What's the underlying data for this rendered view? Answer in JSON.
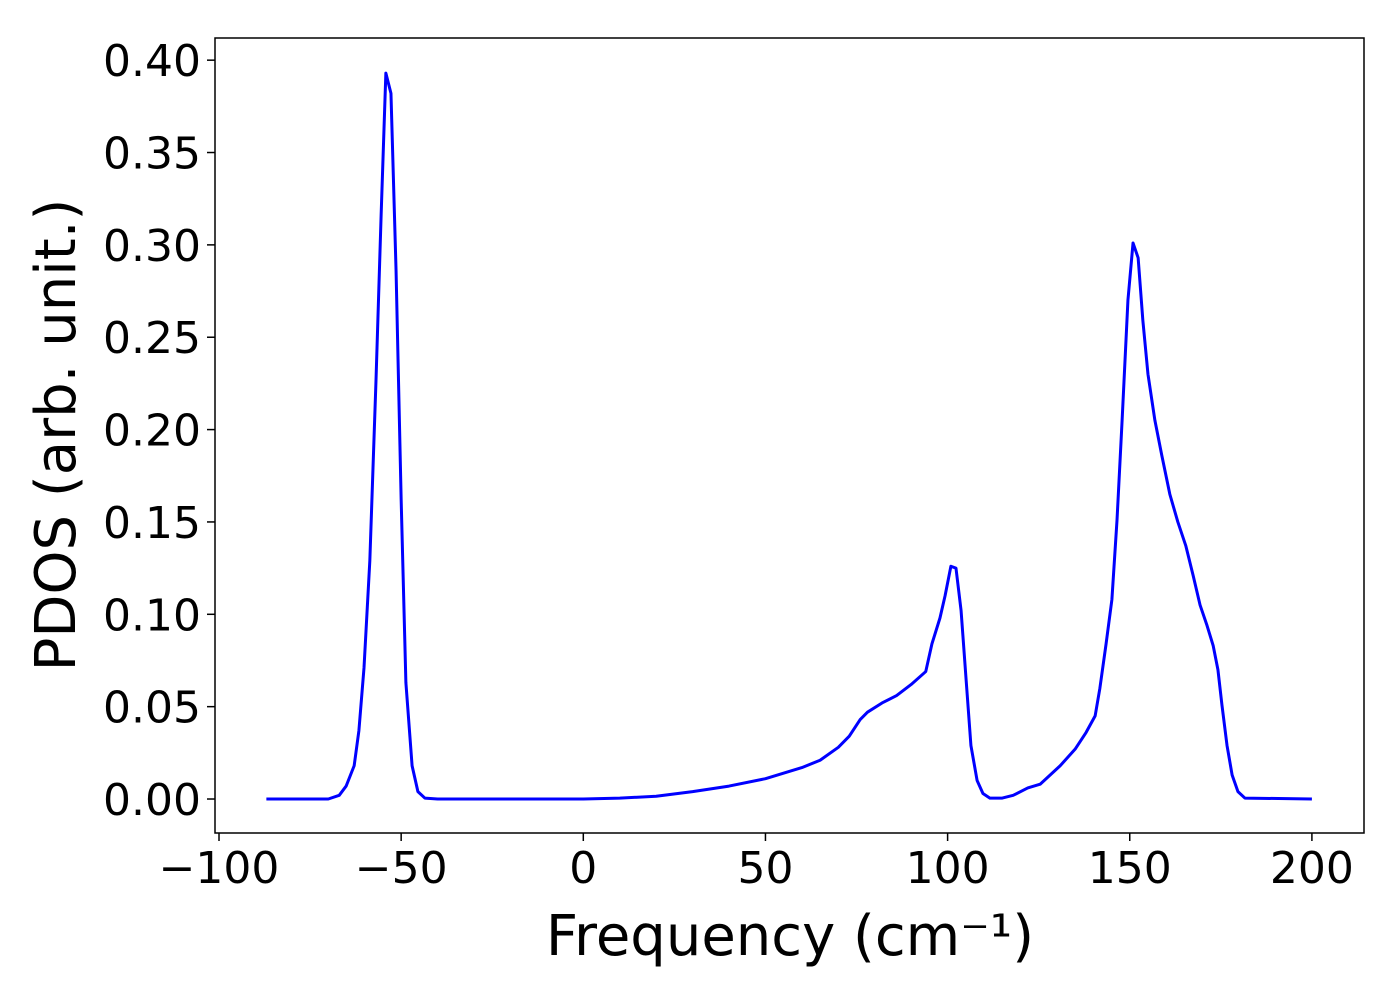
{
  "chart_data": {
    "type": "line",
    "xlabel": "Frequency (cm⁻¹)",
    "ylabel": "PDOS (arb. unit.)",
    "color": "#0000ff",
    "x": [
      -87,
      -70,
      -67,
      -65.1,
      -62.9,
      -61.6,
      -60.2,
      -58.6,
      -56.9,
      -55.5,
      -54.2,
      -52.8,
      -51.4,
      -50.0,
      -48.7,
      -47.0,
      -45.4,
      -43.5,
      -40,
      0,
      10,
      20,
      30,
      40,
      50,
      60,
      65,
      70,
      73,
      76,
      78,
      82,
      86,
      90,
      94,
      95.7,
      97.9,
      99.3,
      100.9,
      102.3,
      103.7,
      105.1,
      106.4,
      108.1,
      109.7,
      111.6,
      115,
      118,
      122,
      125.4,
      130.9,
      135,
      138,
      140.5,
      141.8,
      143.5,
      145.1,
      146.5,
      147.9,
      149.5,
      150.9,
      152.3,
      153.6,
      155.0,
      156.9,
      158.8,
      161.0,
      163.2,
      165.4,
      167.4,
      169.3,
      171.2,
      172.9,
      174.2,
      175.3,
      176.7,
      178.1,
      179.7,
      181.6,
      200
    ],
    "values": [
      0,
      0,
      0.002,
      0.007,
      0.018,
      0.037,
      0.071,
      0.129,
      0.227,
      0.316,
      0.393,
      0.382,
      0.286,
      0.162,
      0.063,
      0.018,
      0.004,
      0.0005,
      0,
      0,
      0.0005,
      0.0015,
      0.004,
      0.007,
      0.011,
      0.017,
      0.021,
      0.028,
      0.034,
      0.043,
      0.047,
      0.052,
      0.056,
      0.062,
      0.069,
      0.084,
      0.098,
      0.11,
      0.126,
      0.125,
      0.102,
      0.064,
      0.029,
      0.01,
      0.003,
      0.0005,
      0.0005,
      0.002,
      0.006,
      0.008,
      0.018,
      0.027,
      0.036,
      0.045,
      0.06,
      0.084,
      0.108,
      0.151,
      0.205,
      0.27,
      0.301,
      0.293,
      0.259,
      0.23,
      0.205,
      0.186,
      0.165,
      0.15,
      0.137,
      0.121,
      0.105,
      0.094,
      0.083,
      0.07,
      0.051,
      0.029,
      0.013,
      0.004,
      0.0005,
      0
    ],
    "xlim": [
      -101.1,
      214.3
    ],
    "ylim": [
      -0.0184,
      0.412
    ],
    "xticks": [
      {
        "value": -100,
        "label": "−100"
      },
      {
        "value": -50,
        "label": "−50"
      },
      0,
      50,
      100,
      150,
      200
    ],
    "yticks": [
      {
        "value": 0,
        "label": "0.00"
      },
      {
        "value": 0.05,
        "label": "0.05"
      },
      {
        "value": 0.1,
        "label": "0.10"
      },
      {
        "value": 0.15,
        "label": "0.15"
      },
      {
        "value": 0.2,
        "label": "0.20"
      },
      {
        "value": 0.25,
        "label": "0.25"
      },
      {
        "value": 0.3,
        "label": "0.30"
      },
      {
        "value": 0.35,
        "label": "0.35"
      },
      {
        "value": 0.4,
        "label": "0.40"
      }
    ],
    "grid": false
  }
}
